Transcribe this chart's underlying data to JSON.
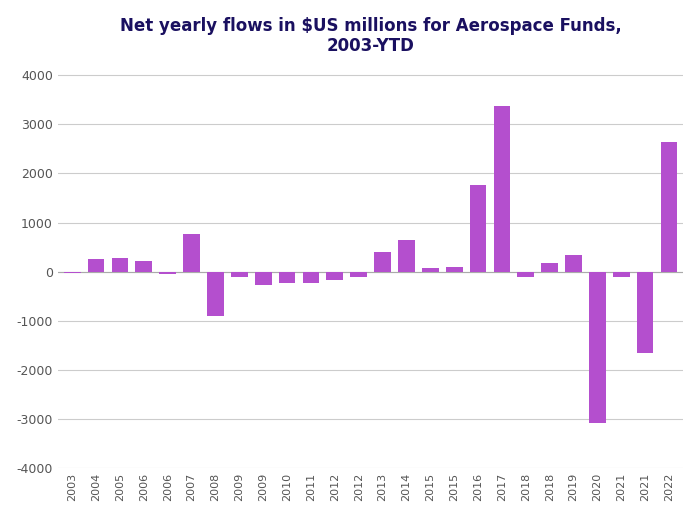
{
  "title_line1": "Net yearly flows in $US millions for Aerospace Funds,",
  "title_line2": "2003-YTD",
  "years": [
    "2003",
    "2004",
    "2005",
    "2006",
    "2006",
    "2007",
    "2008",
    "2009",
    "2009",
    "2010",
    "2011",
    "2012",
    "2012",
    "2013",
    "2014",
    "2015",
    "2015",
    "2016",
    "2017",
    "2018",
    "2018",
    "2019",
    "2020",
    "2021",
    "2021",
    "2022"
  ],
  "values": [
    -30,
    250,
    270,
    220,
    -50,
    770,
    -900,
    -100,
    -280,
    -230,
    -230,
    -180,
    -100,
    400,
    650,
    80,
    100,
    1770,
    3380,
    -100,
    170,
    330,
    -3080,
    -100,
    -1650,
    2640
  ],
  "bar_color": "#b44fce",
  "background_color": "#ffffff",
  "title_color": "#1a1060",
  "ylim": [
    -4000,
    4200
  ],
  "yticks": [
    -4000,
    -3000,
    -2000,
    -1000,
    0,
    1000,
    2000,
    3000,
    4000
  ],
  "grid_color": "#cccccc",
  "zero_line_color": "#aaaaaa",
  "title_fontsize": 12,
  "bar_width": 0.7
}
